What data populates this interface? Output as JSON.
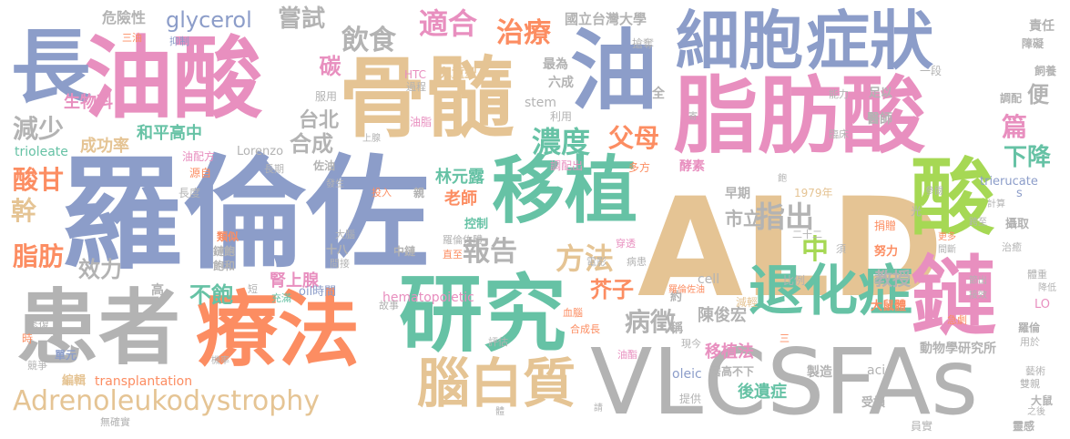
{
  "words": {
    "luolunzuo": "羅倫佐",
    "ald": "ALD",
    "vlcsfas": "VLCSFAs",
    "zhifangsuan": "脂肪酸",
    "youzuan": "油酸",
    "gusui": "骨髓",
    "xibao": "細胞",
    "zhengzhuang": "症狀",
    "yanjiu": "研究",
    "liaofa": "療法",
    "huanzhe": "患者",
    "yizhi": "移植",
    "changyou": "長",
    "you": "油",
    "suan": "酸",
    "lian": "鏈",
    "tuihuazheng": "退化症",
    "naobaizhi": "腦白質",
    "adreno": "Adrenoleukodystrophy",
    "glycerol": "glycerol",
    "changshi": "嘗試",
    "yinshi": "飲食",
    "shihe": "適合",
    "zhiliao": "治療",
    "taida": "國立台灣大學",
    "nongdu": "濃度",
    "fumu": "父母",
    "fangfa": "方法",
    "baogao": "報告",
    "zhichu": "指出",
    "zhong": "中",
    "bingzheng": "病徵",
    "jiezi": "芥子",
    "bubao": "不飽",
    "shenshangxian": "腎上腺",
    "xiaoli": "效力",
    "gan": "幹",
    "zhifang": "脂肪",
    "suangan": "酸甘",
    "jianshao": "減少",
    "taibei": "台北",
    "hecheng": "合成",
    "heping": "和平高中",
    "chenggonglv": "成功率",
    "shengwuke": "生物科",
    "weixianxing": "危險性",
    "tan": "碳",
    "lao": "老師",
    "linyuanlu": "林元露",
    "xiajiang": "下降",
    "bian": "便",
    "pian": "篇",
    "shili": "市立",
    "jiaoshou": "教授",
    "yizhifa": "移植法",
    "chenjunhong": "陳俊宏",
    "houyizheng": "後遺症",
    "dongwusuo": "動物學研究所",
    "lorenzo": "Lorenzo",
    "trioleate": "trioleate",
    "hematopoietic": "hematopoietic",
    "transplantation": "transplantation",
    "stem": "stem",
    "cell": "cell",
    "oleic": "oleic",
    "acid": "acid",
    "trierucate": "trierucate",
    "s": "s",
    "lo": "LO",
    "nian1979": "1979年",
    "oilshijian": "oil時間",
    "htc": "HTC",
    "ertongxing": "兒童型",
    "guocheng": "過程",
    "zuiwei": "最為",
    "liucheng": "六成",
    "zhuoduo": "搶奪",
    "yiduan": "一段",
    "zeren": "責任",
    "zhang": "障礙",
    "siyang": "飼養",
    "tiaopei": "調配",
    "nengli": "能力",
    "zuyi": "足以",
    "yishi": "醫師",
    "linchuang": "臨床",
    "fushi": "服用",
    "youzhi": "油脂",
    "shangxian": "上腺",
    "liyong": "利用",
    "tiaopeichu": "調配出",
    "duofang": "多方",
    "meisu": "酵素",
    "zaoqi": "早期",
    "jianqing": "減輕",
    "bili": "比例",
    "nuli": "努力",
    "dashuti": "大鼠體",
    "juanxian": "捐贈",
    "sheqv": "攝取",
    "gengduo": "更多",
    "jianduan": "間斷",
    "zhidao": "治癒",
    "jiangdi": "降低",
    "tizhong": "體重",
    "yongyu": "用於",
    "luolun": "羅倫",
    "jimi": "藝術",
    "shuangqin": "雙親",
    "dashu": "大鼠",
    "zhihou": "之後",
    "lingan": "靈感",
    "yuanshi": "員實",
    "shousun": "受損",
    "tigong": "提供",
    "zhizao": "製造",
    "jugao": "居高不下",
    "xianzhu": "現今",
    "cheng": "稱",
    "yue": "約",
    "quan": "全",
    "danyuan": "單元",
    "bianji": "編輯",
    "jingzheng": "競爭",
    "wuqueshi": "無確實",
    "hebaohe": "飽和",
    "lianbao": "鏈飽",
    "leisi": "類似",
    "xiufu": "修復",
    "changdu": "長度",
    "yuanzi": "源自",
    "youpeifang": "油配方",
    "changqi": "長期",
    "zuoyou": "佐油",
    "fasheng": "發生",
    "touru": "投入",
    "qin": "親",
    "kongzhi": "控制",
    "luolunzuoti": "羅倫佐體",
    "zhongjian": "中鏈",
    "zhijie": "直至",
    "dianying": "電影",
    "chuantou": "穿透",
    "bingyuan": "病患",
    "danao": "大腦",
    "shiba": "十八",
    "jianjie": "間接",
    "chongman": "充滿",
    "duan": "短",
    "gao": "高",
    "gushi": "故事",
    "xueqing": "血腦",
    "pinggu": "評估",
    "hechengchang": "合成長",
    "luolunzuoyou": "羅倫佐油",
    "youzhuang": "油酯",
    "jizhi": "機率",
    "shi": "時",
    "qing": "請",
    "ti": "體",
    "sanyou": "三油",
    "yizhi2": "抑制",
    "jiechu": "節出",
    "jisuan": "計算",
    "ershier": "二十二",
    "xu": "須",
    "jiyou": "寄",
    "bao": "飽",
    "san": "三",
    "jiexiao": "接效",
    "canyue": "參閱",
    "guang": "光",
    "kuazhi": "跨至",
    "jixu": "急劇"
  }
}
